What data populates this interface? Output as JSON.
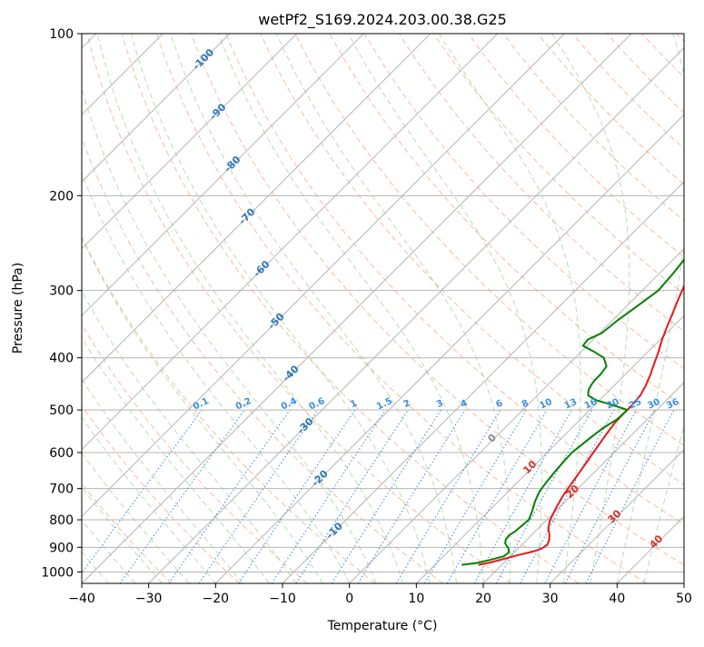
{
  "chart_data": {
    "type": "line",
    "title": "wetPf2_S169.2024.203.00.38.G25",
    "xlabel": "Temperature (°C)",
    "ylabel": "Pressure (hPa)",
    "xlim": [
      -40,
      50
    ],
    "ylim": [
      1050,
      100
    ],
    "y_scale": "log",
    "grid": true,
    "x_ticks": [
      "−40",
      "−30",
      "−20",
      "−10",
      "0",
      "10",
      "20",
      "30",
      "40",
      "50"
    ],
    "y_ticks": [
      {
        "p": 100,
        "label": "100"
      },
      {
        "p": 200,
        "label": "200"
      },
      {
        "p": 300,
        "label": "300"
      },
      {
        "p": 400,
        "label": "400"
      },
      {
        "p": 500,
        "label": "500"
      },
      {
        "p": 600,
        "label": "600"
      },
      {
        "p": 700,
        "label": "700"
      },
      {
        "p": 800,
        "label": "800"
      },
      {
        "p": 900,
        "label": "900"
      },
      {
        "p": 1000,
        "label": "1000"
      }
    ],
    "isotherm_labels": [
      "-100",
      "-90",
      "-80",
      "-70",
      "-60",
      "-50",
      "-40",
      "-30",
      "-20",
      "-10"
    ],
    "isotherm_label_temps": [
      -100,
      -90,
      -80,
      -70,
      -60,
      -50,
      -40,
      -30,
      -20,
      -10
    ],
    "mixing_ratio_labels": [
      "0.1",
      "0.2",
      "0.4",
      "0.6",
      "1",
      "1.5",
      "2",
      "3",
      "4",
      "6",
      "8",
      "10",
      "13",
      "16",
      "20",
      "25",
      "30",
      "36"
    ],
    "mixing_ratio_values": [
      0.1,
      0.2,
      0.4,
      0.6,
      1,
      1.5,
      2,
      3,
      4,
      6,
      8,
      10,
      13,
      16,
      20,
      25,
      30,
      36
    ],
    "moist_adiabat_labels": [
      "0",
      "10",
      "20",
      "30",
      "40"
    ],
    "moist_adiabat_label_temps": [
      0,
      10,
      20,
      30,
      40
    ],
    "series": [
      {
        "role": "temperature",
        "color": "#e41a1c",
        "p": [
          970,
          960,
          945,
          930,
          915,
          905,
          890,
          870,
          850,
          830,
          800,
          760,
          720,
          680,
          640,
          600,
          560,
          530,
          510,
          490,
          470,
          450,
          430,
          410,
          390,
          370,
          350,
          330,
          310,
          290,
          270,
          250,
          235,
          220,
          210,
          205,
          195,
          188,
          182,
          176,
          170,
          162,
          155,
          148,
          140,
          132,
          124,
          116,
          110,
          104,
          100
        ],
        "t": [
          16.5,
          18,
          19.5,
          21,
          22.8,
          23.5,
          23.8,
          23.3,
          22.5,
          21.5,
          20.5,
          19.6,
          18.8,
          18.2,
          17.6,
          16.9,
          16.2,
          15.7,
          15.6,
          15.6,
          15.4,
          14.7,
          13.8,
          12.7,
          11.6,
          10.3,
          9.1,
          7.9,
          6.6,
          5.3,
          4.2,
          3.1,
          2.7,
          2.4,
          2.5,
          3.0,
          5.2,
          7.5,
          9.3,
          10.5,
          11.7,
          12.6,
          13.4,
          14.2,
          15.4,
          16.6,
          18.0,
          19.1,
          20.3,
          21.5,
          22.1
        ]
      },
      {
        "role": "dewpoint",
        "color": "#008000",
        "p": [
          970,
          962,
          950,
          935,
          920,
          905,
          885,
          870,
          855,
          840,
          800,
          770,
          740,
          710,
          680,
          650,
          620,
          600,
          580,
          560,
          540,
          520,
          500,
          490,
          480,
          470,
          460,
          450,
          440,
          430,
          415,
          400,
          390,
          380,
          370,
          360,
          340,
          320,
          300,
          280,
          260,
          240,
          225,
          215,
          210,
          205,
          200,
          195,
          185,
          175,
          165,
          155,
          145,
          135,
          125,
          118,
          112,
          107,
          104,
          102,
          100
        ],
        "t": [
          14,
          16,
          17.5,
          19,
          19.2,
          18.6,
          17.3,
          16.8,
          16.7,
          17,
          17.3,
          16.5,
          15.5,
          14.7,
          14.3,
          14,
          13.8,
          13.7,
          14,
          14.3,
          14.7,
          15.5,
          15.6,
          12.8,
          9.6,
          7.6,
          6.9,
          6.5,
          6.3,
          6.3,
          6.0,
          4.3,
          2.0,
          -0.6,
          -0.8,
          0.3,
          0.8,
          1.6,
          2.4,
          2.1,
          1.6,
          1.3,
          1.5,
          1.4,
          0.6,
          -0.9,
          -2.2,
          -2.6,
          -3.0,
          -4.0,
          -5.0,
          -6.4,
          -7.8,
          -8.8,
          -9.0,
          -8.6,
          -7.6,
          -6.5,
          -5.7,
          -5.0,
          -4.2
        ]
      }
    ]
  }
}
